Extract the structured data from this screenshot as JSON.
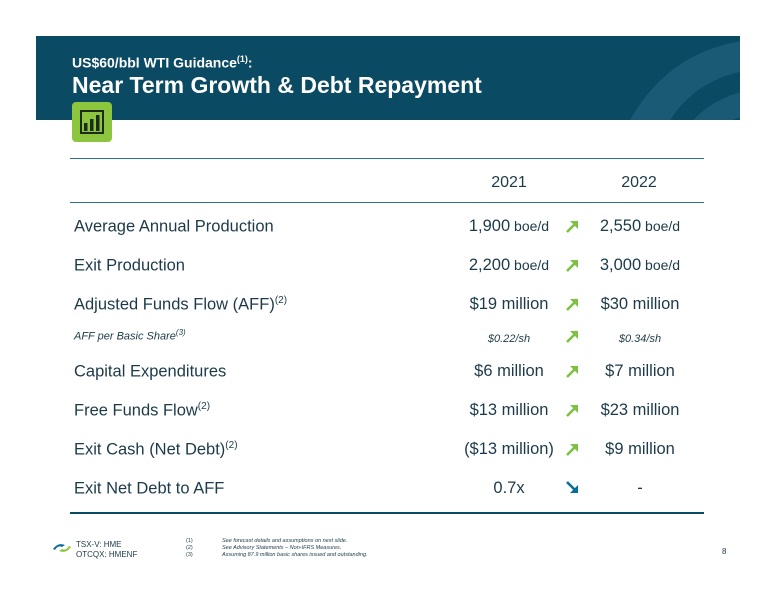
{
  "header": {
    "subtitle": "US$60/bbl WTI Guidance",
    "subtitle_sup": "(1)",
    "subtitle_suffix": ":",
    "title": "Near Term Growth & Debt Repayment"
  },
  "table": {
    "columns": [
      "2021",
      "2022"
    ],
    "rows": [
      {
        "label": "Average Annual Production",
        "sup": "",
        "v2021": "1,900",
        "u2021": " boe/d",
        "trend": "up",
        "v2022": "2,550",
        "u2022": " boe/d"
      },
      {
        "label": "Exit Production",
        "sup": "",
        "v2021": "2,200",
        "u2021": " boe/d",
        "trend": "up",
        "v2022": "3,000",
        "u2022": " boe/d"
      },
      {
        "label": "Adjusted Funds Flow (AFF)",
        "sup": "(2)",
        "v2021": "$19 million",
        "u2021": "",
        "trend": "up",
        "v2022": "$30 million",
        "u2022": ""
      },
      {
        "label": "AFF per Basic Share",
        "sup": "(3)",
        "v2021": "$0.22/sh",
        "u2021": "",
        "trend": "up",
        "v2022": "$0.34/sh",
        "u2022": ""
      },
      {
        "label": "Capital Expenditures",
        "sup": "",
        "v2021": "$6 million",
        "u2021": "",
        "trend": "up",
        "v2022": "$7 million",
        "u2022": ""
      },
      {
        "label": "Free Funds Flow",
        "sup": "(2)",
        "v2021": "$13 million",
        "u2021": "",
        "trend": "up",
        "v2022": "$23 million",
        "u2022": ""
      },
      {
        "label": "Exit Cash (Net Debt)",
        "sup": "(2)",
        "v2021": "($13 million)",
        "u2021": "",
        "trend": "up",
        "v2022": "$9 million",
        "u2022": ""
      },
      {
        "label": "Exit Net Debt to AFF",
        "sup": "",
        "v2021": "0.7x",
        "u2021": "",
        "trend": "down",
        "v2022": "-",
        "u2022": ""
      }
    ]
  },
  "footer": {
    "ticker1": "TSX-V: HME",
    "ticker2": "OTCQX: HMENF",
    "notes": [
      {
        "num": "(1)",
        "text": "See forecast details and assumptions on next slide."
      },
      {
        "num": "(2)",
        "text": "See Advisory Statements – Non-IFRS Measures."
      },
      {
        "num": "(3)",
        "text": "Assuming 87.9 million basic shares issued and outstanding."
      }
    ],
    "page": "8"
  },
  "colors": {
    "banner": "#0b4a63",
    "accent_green": "#8cc63f",
    "arrow_up": "#7dc142",
    "arrow_down": "#0b6e99"
  },
  "icons": {
    "badge": "bar-chart-icon",
    "logo": "company-logo-icon",
    "up": "arrow-up-right-icon",
    "down": "arrow-down-right-icon"
  }
}
